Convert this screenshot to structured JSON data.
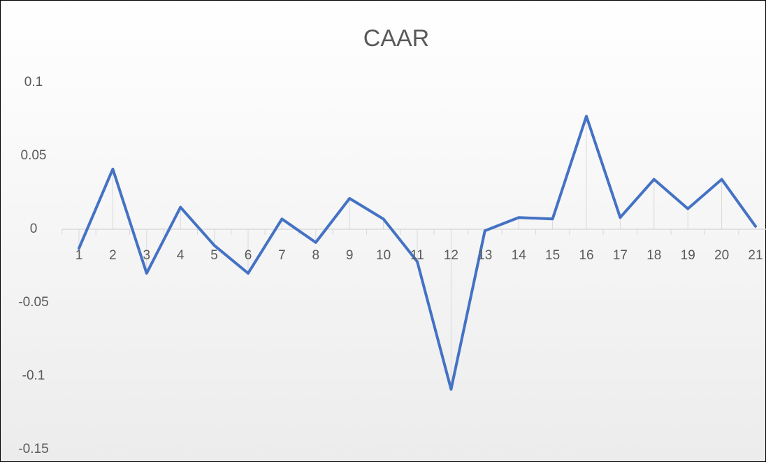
{
  "chart_data": {
    "type": "line",
    "title": "CAAR",
    "categories": [
      "1",
      "2",
      "3",
      "4",
      "5",
      "6",
      "7",
      "8",
      "9",
      "10",
      "11",
      "12",
      "13",
      "14",
      "15",
      "16",
      "17",
      "18",
      "19",
      "20",
      "21"
    ],
    "series": [
      {
        "name": "CAAR",
        "color": "#4472c4",
        "values": [
          -0.013,
          0.041,
          -0.03,
          0.015,
          -0.011,
          -0.03,
          0.007,
          -0.009,
          0.021,
          0.007,
          -0.022,
          -0.109,
          -0.001,
          0.008,
          0.007,
          0.077,
          0.008,
          0.034,
          0.014,
          0.034,
          0.002
        ]
      }
    ],
    "ylim": [
      -0.15,
      0.1
    ],
    "yticks": [
      -0.15,
      -0.1,
      -0.05,
      0,
      0.05,
      0.1
    ],
    "grid": false,
    "drop_lines": true
  }
}
